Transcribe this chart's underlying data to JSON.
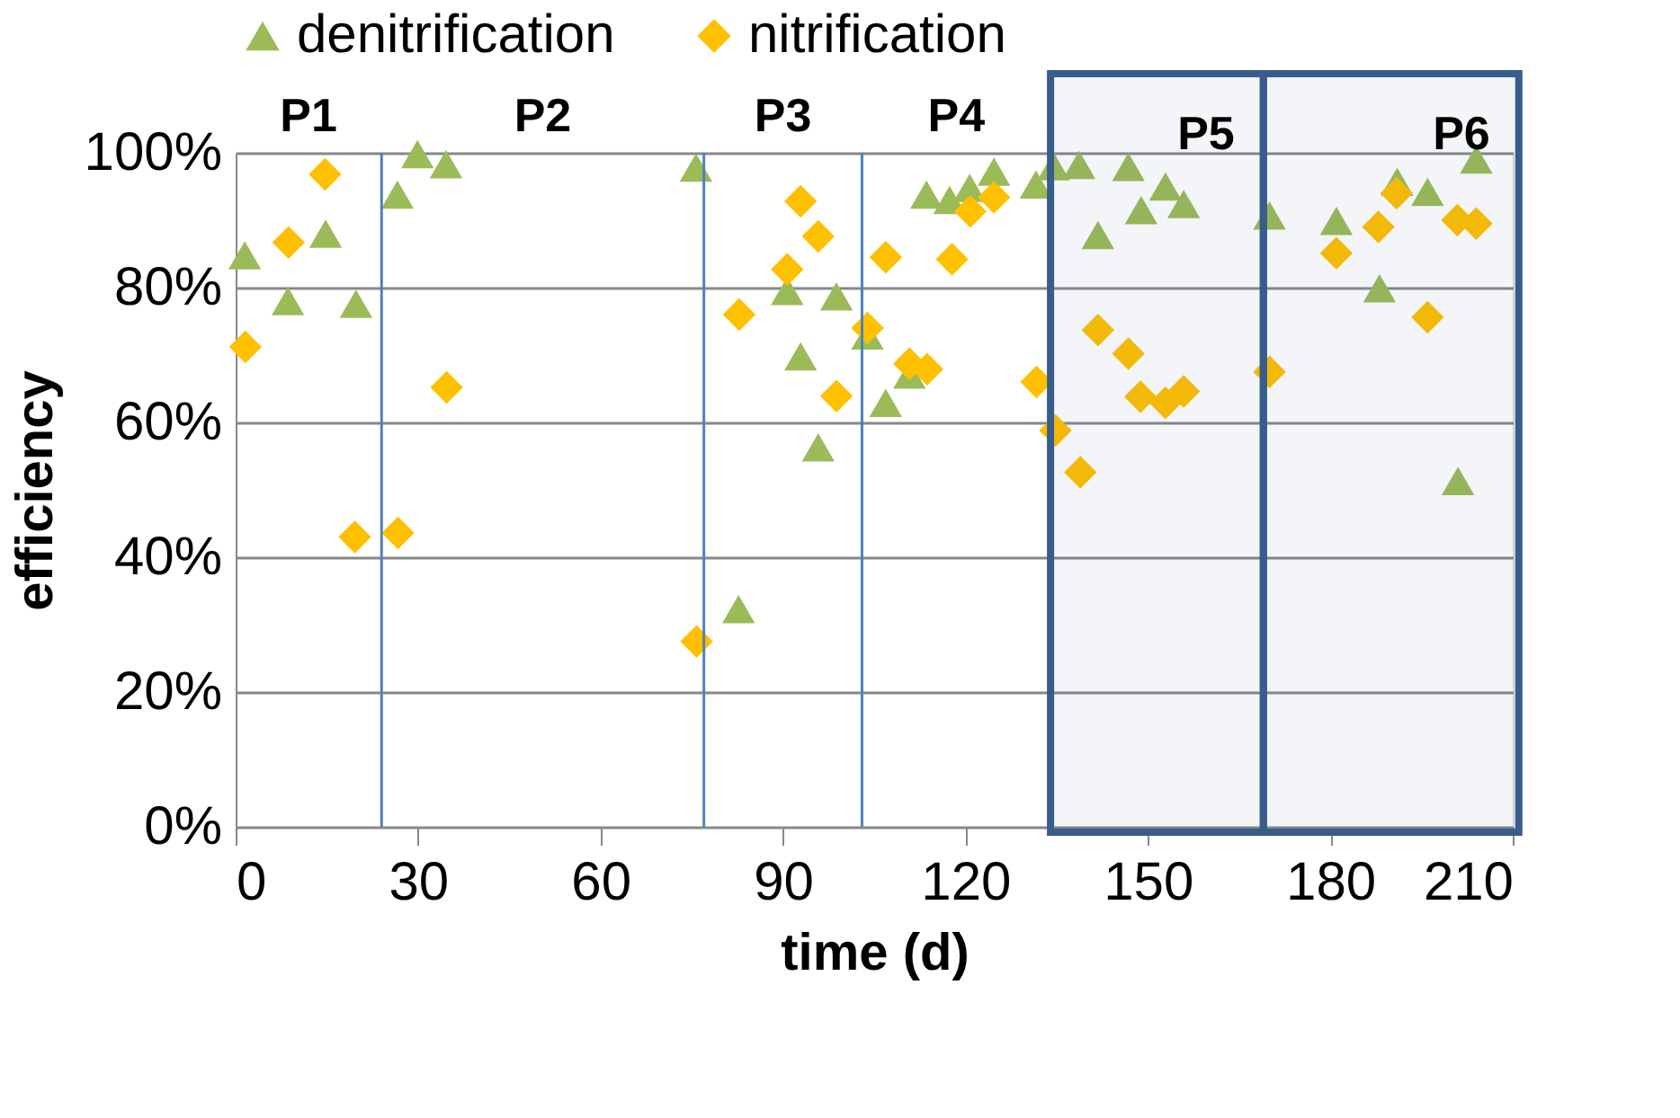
{
  "chart_data": {
    "type": "scatter",
    "xlabel": "time (d)",
    "ylabel": "efficiency",
    "xlim": [
      0,
      210
    ],
    "xticks": [
      0,
      30,
      60,
      90,
      120,
      150,
      180,
      210
    ],
    "ylim": [
      0,
      100
    ],
    "yticks": [
      {
        "value": 0,
        "label": "0%"
      },
      {
        "value": 20,
        "label": "20%"
      },
      {
        "value": 40,
        "label": "40%"
      },
      {
        "value": 60,
        "label": "60%"
      },
      {
        "value": 80,
        "label": "80%"
      },
      {
        "value": 100,
        "label": "100%"
      }
    ],
    "grid": "y",
    "legend": "top",
    "series": [
      {
        "name": "denitrification",
        "color": "#9bbb59",
        "marker": "triangle",
        "x": [
          1.5,
          8.6,
          14.8,
          19.8,
          26.6,
          29.9,
          34.6,
          75.7,
          82.7,
          90.7,
          92.9,
          95.8,
          98.8,
          103.9,
          106.9,
          110.8,
          113.6,
          117.4,
          120.7,
          124.7,
          131.6,
          134.5,
          138.7,
          141.8,
          146.8,
          148.9,
          152.9,
          155.9,
          170,
          181,
          188.1,
          191,
          196,
          201,
          204
        ],
        "values": [
          84.8,
          78,
          88,
          77.6,
          93.8,
          99.8,
          98.3,
          97.8,
          32.3,
          79.5,
          69.8,
          56.3,
          78.7,
          72.9,
          62.9,
          67.1,
          93.8,
          93,
          94.8,
          97.2,
          95.3,
          98,
          98.2,
          87.8,
          97.9,
          91.5,
          95,
          92.4,
          90.7,
          89.9,
          79.9,
          95.7,
          94.2,
          51.3,
          99
        ]
      },
      {
        "name": "nitrification",
        "color": "#ffc000",
        "marker": "diamond",
        "x": [
          1.6,
          8.7,
          14.7,
          19.6,
          26.7,
          34.7,
          75.8,
          82.8,
          90.7,
          92.9,
          95.8,
          98.8,
          103.9,
          106.9,
          110.8,
          113.7,
          117.8,
          120.8,
          124.7,
          131.7,
          134.8,
          138.9,
          141.8,
          146.8,
          148.8,
          152.9,
          155.9,
          170,
          181,
          187.9,
          190.9,
          196,
          200.9,
          204
        ],
        "values": [
          71.2,
          86.7,
          96.8,
          43,
          43.6,
          65.2,
          27.5,
          76,
          82.7,
          92.8,
          87.6,
          63.9,
          74,
          84.5,
          68.7,
          67.9,
          84.2,
          91.3,
          93.4,
          66,
          58.8,
          52.6,
          73.7,
          70.2,
          63.8,
          62.9,
          64.6,
          67.5,
          85.1,
          89,
          94,
          75.6,
          90,
          89.5
        ]
      }
    ],
    "ref_lines": [
      {
        "axis": "x",
        "value": 24,
        "color": "#4f81bd"
      },
      {
        "axis": "x",
        "value": 77,
        "color": "#4f81bd"
      },
      {
        "axis": "x",
        "value": 103,
        "color": "#4f81bd"
      }
    ],
    "bands": [
      {
        "axis": "x",
        "from": 134,
        "to": 169,
        "label": "P5",
        "color": "#385d8a"
      },
      {
        "axis": "x",
        "from": 169,
        "to": 211,
        "label": "P6",
        "color": "#385d8a"
      }
    ],
    "annotations": [
      "P1",
      "P2",
      "P3",
      "P4"
    ]
  }
}
